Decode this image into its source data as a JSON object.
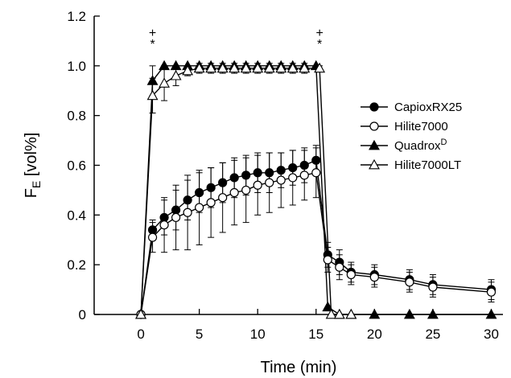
{
  "chart_data": {
    "type": "line",
    "title": "",
    "xlabel": "Time (min)",
    "ylabel": {
      "main": "F",
      "sub": "E",
      "suffix": " [vol%]"
    },
    "xlim": [
      -4,
      31
    ],
    "ylim": [
      0,
      1.2
    ],
    "xticks": [
      0,
      5,
      10,
      15,
      20,
      25,
      30
    ],
    "yticks": [
      0,
      0.2,
      0.4,
      0.6,
      0.8,
      1.0,
      1.2
    ],
    "ytick_labels": [
      "0",
      "0.2",
      "0.4",
      "0.6",
      "0.8",
      "1.0",
      "1.2"
    ],
    "grid": false,
    "legend_position": "right",
    "annotations": [
      {
        "x": 1,
        "plus": "+",
        "star": "*"
      },
      {
        "x": 15.3,
        "plus": "+",
        "star": "*"
      }
    ],
    "series": [
      {
        "name": "CapioxRX25",
        "name_sup": "",
        "marker": "circle",
        "filled": true,
        "x": [
          0,
          1,
          2,
          3,
          4,
          5,
          6,
          7,
          8,
          9,
          10,
          11,
          12,
          13,
          14,
          15,
          16,
          17,
          18,
          20,
          23,
          25,
          30
        ],
        "y": [
          0,
          0.34,
          0.39,
          0.42,
          0.46,
          0.49,
          0.51,
          0.53,
          0.55,
          0.56,
          0.57,
          0.57,
          0.58,
          0.59,
          0.6,
          0.62,
          0.24,
          0.21,
          0.17,
          0.16,
          0.14,
          0.12,
          0.1
        ],
        "err": [
          0,
          0.04,
          0.07,
          0.08,
          0.08,
          0.08,
          0.08,
          0.08,
          0.08,
          0.08,
          0.08,
          0.08,
          0.07,
          0.07,
          0.07,
          0.06,
          0.05,
          0.05,
          0.04,
          0.04,
          0.04,
          0.04,
          0.04
        ]
      },
      {
        "name": "Hilite7000",
        "name_sup": "",
        "marker": "circle",
        "filled": false,
        "x": [
          0,
          1,
          2,
          3,
          4,
          5,
          6,
          7,
          8,
          9,
          10,
          11,
          12,
          13,
          14,
          15,
          16,
          17,
          18,
          20,
          23,
          25,
          30
        ],
        "y": [
          0,
          0.31,
          0.36,
          0.39,
          0.41,
          0.43,
          0.45,
          0.47,
          0.49,
          0.5,
          0.52,
          0.53,
          0.54,
          0.55,
          0.56,
          0.57,
          0.22,
          0.19,
          0.16,
          0.15,
          0.13,
          0.11,
          0.09
        ],
        "err": [
          0,
          0.06,
          0.11,
          0.13,
          0.15,
          0.15,
          0.14,
          0.14,
          0.13,
          0.13,
          0.12,
          0.12,
          0.11,
          0.11,
          0.1,
          0.1,
          0.05,
          0.05,
          0.04,
          0.04,
          0.04,
          0.04,
          0.04
        ]
      },
      {
        "name": "Quadrox",
        "name_sup": "D",
        "marker": "triangle",
        "filled": true,
        "x": [
          0,
          1,
          2,
          3,
          4,
          5,
          6,
          7,
          8,
          9,
          10,
          11,
          12,
          13,
          14,
          15,
          16,
          17,
          18,
          20,
          23,
          25,
          30
        ],
        "y": [
          0,
          0.94,
          1.0,
          1.0,
          1.0,
          1.0,
          1.0,
          1.0,
          1.0,
          1.0,
          1.0,
          1.0,
          1.0,
          1.0,
          1.0,
          1.0,
          0.03,
          0,
          0,
          0,
          0,
          0,
          0
        ],
        "err": [
          0,
          0.06,
          0,
          0,
          0,
          0,
          0,
          0,
          0,
          0,
          0,
          0,
          0,
          0,
          0,
          0,
          0,
          0,
          0,
          0,
          0,
          0,
          0
        ]
      },
      {
        "name": "Hilite7000LT",
        "name_sup": "",
        "marker": "triangle",
        "filled": false,
        "x": [
          0,
          1,
          2,
          3,
          4,
          5,
          6,
          7,
          8,
          9,
          10,
          11,
          12,
          13,
          14,
          15.3,
          16.3,
          17,
          18
        ],
        "y": [
          0,
          0.88,
          0.93,
          0.96,
          0.98,
          0.99,
          0.99,
          0.99,
          0.99,
          0.99,
          0.99,
          0.99,
          0.99,
          0.99,
          0.99,
          0.99,
          0,
          0,
          0
        ],
        "err": [
          0,
          0.07,
          0.07,
          0.04,
          0.02,
          0.02,
          0.02,
          0.02,
          0.02,
          0.02,
          0.02,
          0.02,
          0.02,
          0.02,
          0.02,
          0.01,
          0,
          0,
          0
        ]
      }
    ]
  }
}
